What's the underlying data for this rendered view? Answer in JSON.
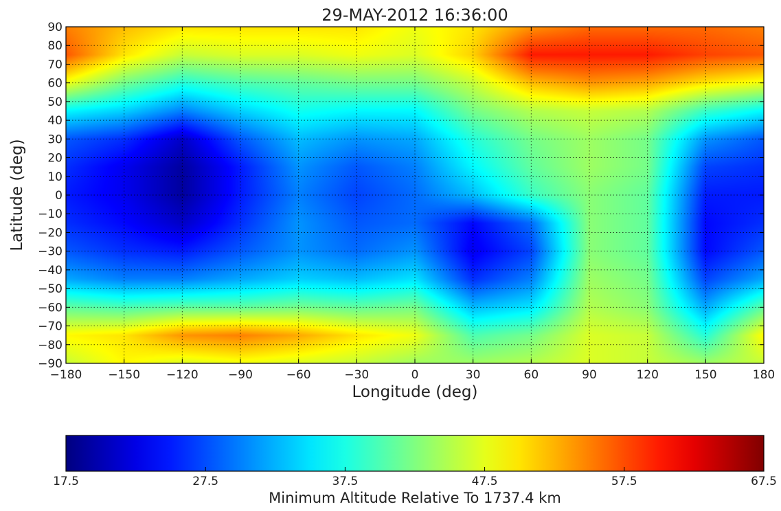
{
  "chart_data": {
    "type": "heatmap",
    "title": "29-MAY-2012 16:36:00",
    "xlabel": "Longitude (deg)",
    "ylabel": "Latitude (deg)",
    "xlim": [
      -180,
      180
    ],
    "ylim": [
      -90,
      90
    ],
    "x_ticks": [
      -180,
      -150,
      -120,
      -90,
      -60,
      -30,
      0,
      30,
      60,
      90,
      120,
      150,
      180
    ],
    "y_ticks": [
      90,
      80,
      70,
      60,
      50,
      40,
      30,
      20,
      10,
      0,
      -10,
      -20,
      -30,
      -40,
      -50,
      -60,
      -70,
      -80,
      -90
    ],
    "grid": true,
    "colormap": "jet",
    "colorbar": {
      "label": "Minimum Altitude Relative To 1737.4 km",
      "range": [
        17.5,
        67.5
      ],
      "ticks": [
        "17.5",
        "27.5",
        "37.5",
        "47.5",
        "57.5",
        "67.5"
      ],
      "orientation": "horizontal",
      "placement": "bottom"
    },
    "grid_longitudes": [
      -180,
      -150,
      -120,
      -90,
      -60,
      -30,
      0,
      30,
      60,
      90,
      120,
      150,
      180
    ],
    "grid_latitudes": [
      90,
      75,
      60,
      45,
      30,
      15,
      0,
      -15,
      -30,
      -45,
      -60,
      -75,
      -90
    ],
    "values": [
      [
        55,
        52,
        50,
        50,
        50,
        50,
        48,
        50,
        54,
        56,
        56,
        56,
        55
      ],
      [
        57,
        50,
        46,
        47,
        47,
        48,
        47,
        51,
        60,
        60,
        60,
        58,
        57
      ],
      [
        48,
        42,
        38,
        40,
        41,
        42,
        42,
        46,
        52,
        54,
        53,
        50,
        48
      ],
      [
        36,
        34,
        30,
        34,
        37,
        36,
        36,
        42,
        45,
        46,
        45,
        39,
        36
      ],
      [
        28,
        26,
        21,
        28,
        33,
        31,
        32,
        38,
        42,
        44,
        42,
        31,
        28
      ],
      [
        26,
        23,
        19,
        25,
        31,
        28,
        30,
        36,
        41,
        44,
        42,
        27,
        26
      ],
      [
        25,
        23,
        19,
        25,
        30,
        27,
        29,
        33,
        39,
        43,
        41,
        25,
        25
      ],
      [
        26,
        24,
        21,
        26,
        31,
        28,
        29,
        24,
        29,
        43,
        41,
        24,
        26
      ],
      [
        28,
        26,
        25,
        28,
        31,
        29,
        31,
        23,
        27,
        43,
        41,
        24,
        28
      ],
      [
        32,
        30,
        30,
        32,
        34,
        33,
        35,
        26,
        30,
        44,
        42,
        27,
        32
      ],
      [
        41,
        40,
        41,
        41,
        42,
        41,
        42,
        33,
        35,
        45,
        43,
        32,
        41
      ],
      [
        49,
        50,
        54,
        55,
        53,
        50,
        48,
        40,
        42,
        47,
        46,
        38,
        49
      ],
      [
        46,
        49,
        47,
        48,
        47,
        46,
        44,
        44,
        45,
        47,
        46,
        44,
        46
      ]
    ]
  }
}
